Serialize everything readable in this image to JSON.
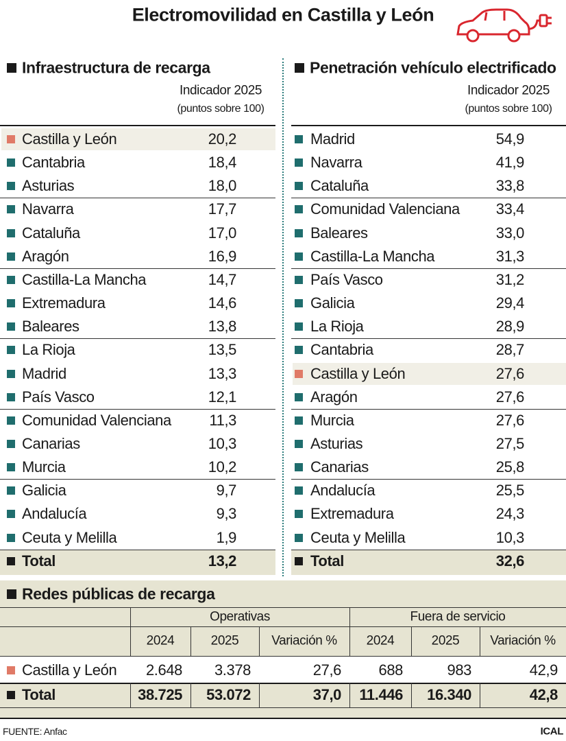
{
  "header": {
    "title": "Electromovilidad en Castilla y León"
  },
  "left": {
    "heading": "Infraestructura de recarga",
    "col_label": "Indicador 2025",
    "col_sublabel": "(puntos sobre 100)",
    "rows": [
      [
        "Castilla y León",
        "20,2"
      ],
      [
        "Cantabria",
        "18,4"
      ],
      [
        "Asturias",
        "18,0"
      ],
      [
        "Navarra",
        "17,7"
      ],
      [
        "Cataluña",
        "17,0"
      ],
      [
        "Aragón",
        "16,9"
      ],
      [
        "Castilla-La Mancha",
        "14,7"
      ],
      [
        "Extremadura",
        "14,6"
      ],
      [
        "Baleares",
        "13,8"
      ],
      [
        "La Rioja",
        "13,5"
      ],
      [
        "Madrid",
        "13,3"
      ],
      [
        "País Vasco",
        "12,1"
      ],
      [
        "Comunidad Valenciana",
        "11,3"
      ],
      [
        "Canarias",
        "10,3"
      ],
      [
        "Murcia",
        "10,2"
      ],
      [
        "Galicia",
        "9,7"
      ],
      [
        "Andalucía",
        "9,3"
      ],
      [
        "Ceuta y Melilla",
        "1,9"
      ]
    ],
    "total": [
      "Total",
      "13,2"
    ]
  },
  "right": {
    "heading": "Penetración vehículo electrificado",
    "col_label": "Indicador 2025",
    "col_sublabel": "(puntos sobre 100)",
    "rows": [
      [
        "Madrid",
        "54,9"
      ],
      [
        "Navarra",
        "41,9"
      ],
      [
        "Cataluña",
        "33,8"
      ],
      [
        "Comunidad Valenciana",
        "33,4"
      ],
      [
        "Baleares",
        "33,0"
      ],
      [
        "Castilla-La Mancha",
        "31,3"
      ],
      [
        "País Vasco",
        "31,2"
      ],
      [
        "Galicia",
        "29,4"
      ],
      [
        "La Rioja",
        "28,9"
      ],
      [
        "Cantabria",
        "28,7"
      ],
      [
        "Castilla y León",
        "27,6"
      ],
      [
        "Aragón",
        "27,6"
      ],
      [
        "Murcia",
        "27,6"
      ],
      [
        "Asturias",
        "27,5"
      ],
      [
        "Canarias",
        "25,8"
      ],
      [
        "Andalucía",
        "25,5"
      ],
      [
        "Extremadura",
        "24,3"
      ],
      [
        "Ceuta y Melilla",
        "10,3"
      ]
    ],
    "total": [
      "Total",
      "32,6"
    ]
  },
  "networks": {
    "heading": "Redes públicas de recarga",
    "groups": [
      "Operativas",
      "Fuera de servicio"
    ],
    "columns": [
      "2024",
      "2025",
      "Variación %",
      "2024",
      "2025",
      "Variación %"
    ],
    "rows": [
      [
        "Castilla y León",
        "2.648",
        "3.378",
        "27,6",
        "688",
        "983",
        "42,9"
      ]
    ],
    "total": [
      "Total",
      "38.725",
      "53.072",
      "37,0",
      "11.446",
      "16.340",
      "42,8"
    ]
  },
  "footer": {
    "source": "FUENTE: Anfac",
    "credit": "ICAL"
  }
}
